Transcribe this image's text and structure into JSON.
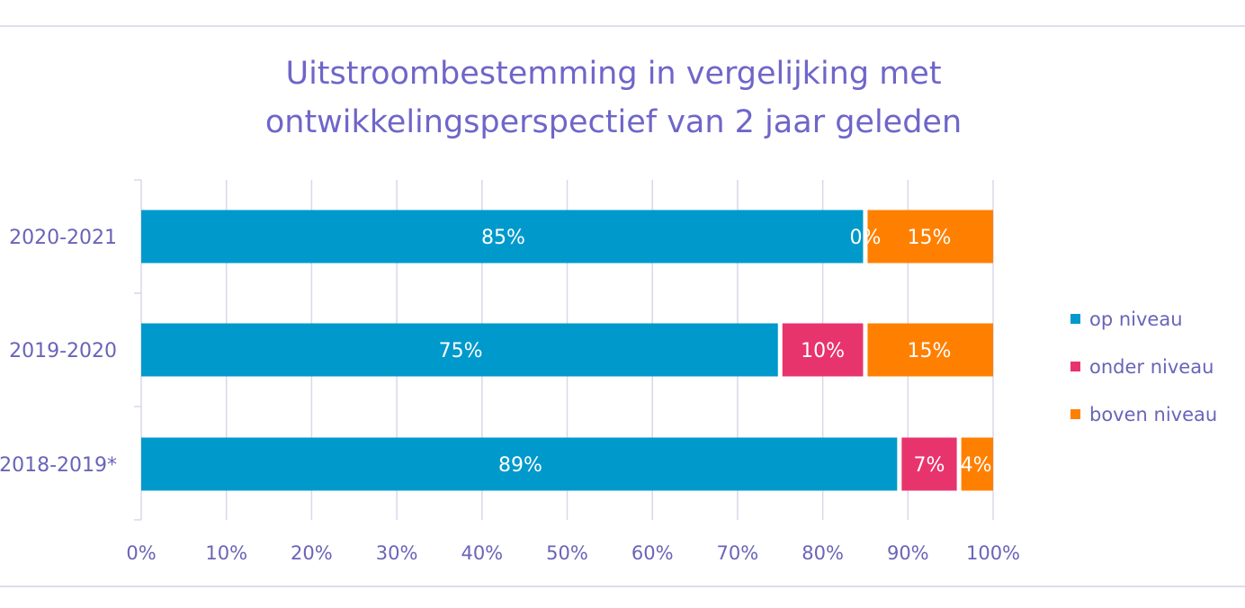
{
  "chart_data": {
    "type": "bar",
    "orientation": "horizontal",
    "stacked": "100%",
    "title": "Uitstroombestemming in vergelijking met ontwikkelingsperspectief van 2 jaar geleden",
    "title_lines": [
      "Uitstroombestemming in vergelijking met",
      "ontwikkelingsperspectief van 2 jaar geleden"
    ],
    "categories": [
      "2020-2021",
      "2019-2020",
      "2018-2019*"
    ],
    "series": [
      {
        "name": "op niveau",
        "color": "#0099cc",
        "values": [
          85,
          75,
          89
        ],
        "labels": [
          "85%",
          "75%",
          "89%"
        ]
      },
      {
        "name": "onder niveau",
        "color": "#e8346d",
        "values": [
          0,
          10,
          7
        ],
        "labels": [
          "0%",
          "10%",
          "7%"
        ]
      },
      {
        "name": "boven niveau",
        "color": "#ff8000",
        "values": [
          15,
          15,
          4
        ],
        "labels": [
          "15%",
          "15%",
          "4%"
        ]
      }
    ],
    "xlim": [
      0,
      100
    ],
    "xticks": [
      "0%",
      "10%",
      "20%",
      "30%",
      "40%",
      "50%",
      "60%",
      "70%",
      "80%",
      "90%",
      "100%"
    ],
    "grid": true,
    "legend_position": "right"
  }
}
